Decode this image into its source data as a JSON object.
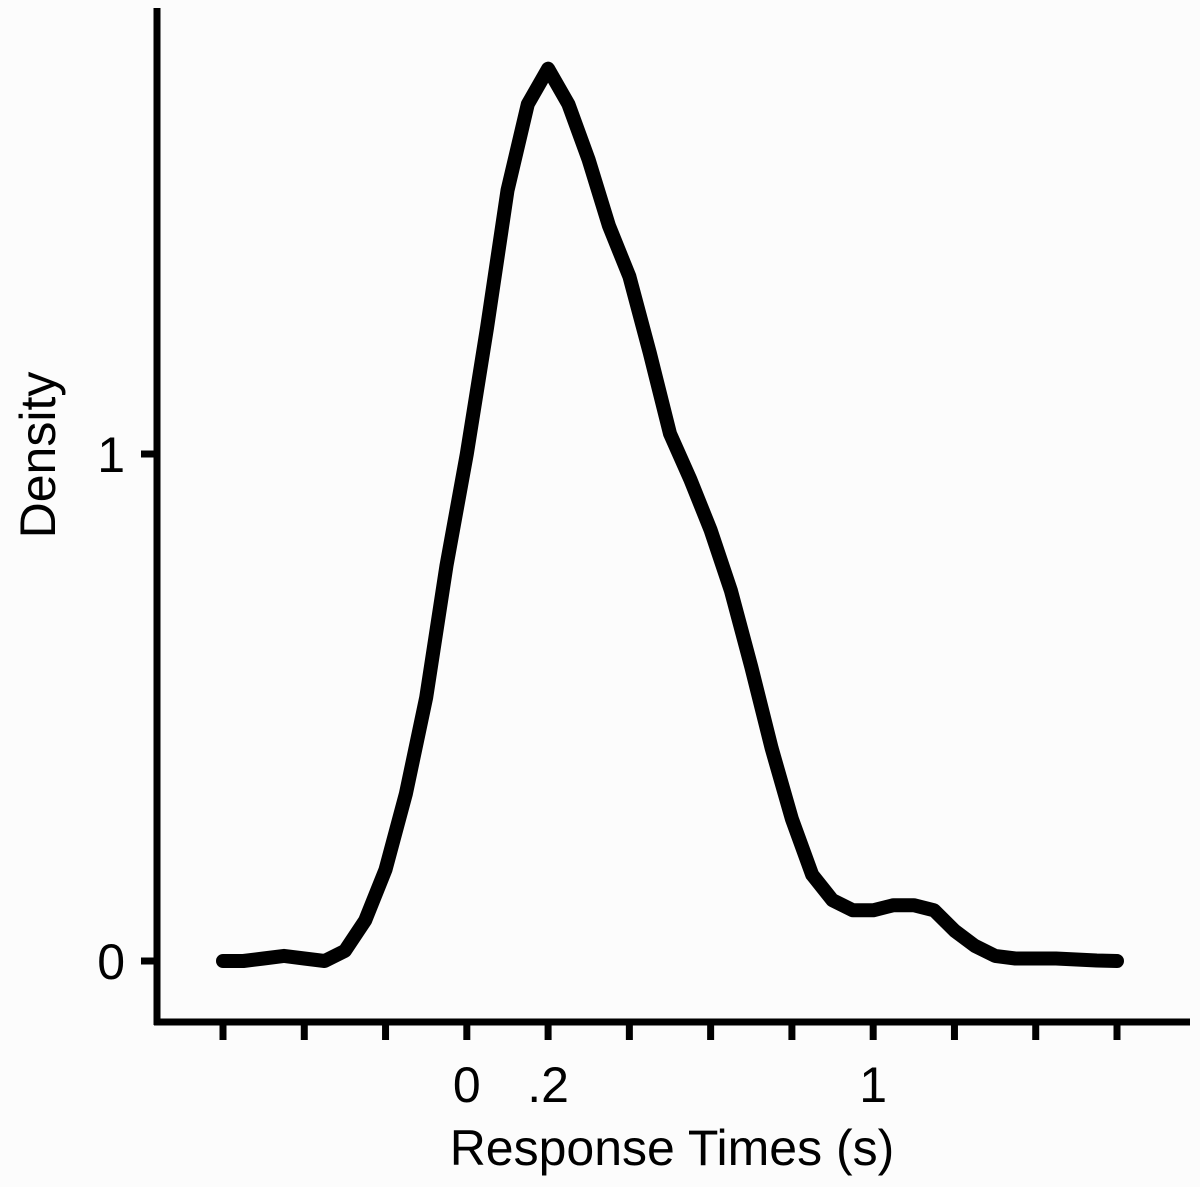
{
  "chart_data": {
    "type": "line",
    "title": "",
    "xlabel": "Response Times (s)",
    "ylabel": "Density",
    "xlim": [
      -0.6,
      1.6
    ],
    "ylim": [
      -0.12,
      1.85
    ],
    "x_ticks": [
      -0.6,
      -0.4,
      -0.2,
      0,
      0.2,
      0.4,
      0.6,
      0.8,
      1.0,
      1.2,
      1.4,
      1.6
    ],
    "x_tick_labels": [
      "",
      "",
      "",
      "0",
      ".2",
      "",
      "",
      "",
      "1",
      "",
      "",
      ""
    ],
    "y_ticks": [
      0,
      1
    ],
    "y_tick_labels": [
      "0",
      "1"
    ],
    "grid": false,
    "legend": "none",
    "line_color": "#000000",
    "series": [
      {
        "x": [
          -0.6,
          -0.55,
          -0.5,
          -0.45,
          -0.4,
          -0.35,
          -0.3,
          -0.25,
          -0.2,
          -0.15,
          -0.1,
          -0.05,
          0,
          0.05,
          0.1,
          0.15,
          0.2,
          0.25,
          0.3,
          0.35,
          0.4,
          0.45,
          0.5,
          0.55,
          0.6,
          0.65,
          0.7,
          0.75,
          0.8,
          0.85,
          0.9,
          0.95,
          1.0,
          1.05,
          1.1,
          1.15,
          1.2,
          1.25,
          1.3,
          1.35,
          1.4,
          1.45,
          1.5,
          1.55,
          1.6
        ],
        "y": [
          0.0,
          0.0,
          0.005,
          0.01,
          0.005,
          0.0,
          0.02,
          0.08,
          0.18,
          0.33,
          0.52,
          0.78,
          1.0,
          1.25,
          1.52,
          1.69,
          1.76,
          1.69,
          1.58,
          1.45,
          1.35,
          1.2,
          1.04,
          0.95,
          0.85,
          0.73,
          0.58,
          0.42,
          0.28,
          0.17,
          0.12,
          0.1,
          0.1,
          0.11,
          0.11,
          0.1,
          0.06,
          0.03,
          0.01,
          0.005,
          0.005,
          0.005,
          0.003,
          0.001,
          0.0
        ]
      }
    ]
  }
}
